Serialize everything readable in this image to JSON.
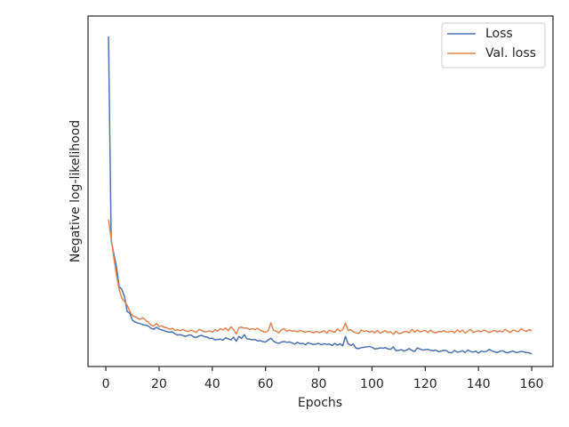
{
  "chart_data": {
    "type": "line",
    "xlabel": "Epochs",
    "ylabel": "Negative log-likelihood",
    "xlim": [
      -6.7,
      168
    ],
    "xticks": [
      0,
      20,
      40,
      60,
      80,
      100,
      120,
      140,
      160
    ],
    "ylim": [
      0,
      100
    ],
    "legend": "upper right",
    "x": [
      1,
      2,
      3,
      4,
      5,
      6,
      7,
      8,
      9,
      10,
      11,
      12,
      13,
      14,
      15,
      16,
      17,
      18,
      19,
      20,
      21,
      22,
      23,
      24,
      25,
      26,
      27,
      28,
      29,
      30,
      31,
      32,
      33,
      34,
      35,
      36,
      37,
      38,
      39,
      40,
      41,
      42,
      43,
      44,
      45,
      46,
      47,
      48,
      49,
      50,
      51,
      52,
      53,
      54,
      55,
      56,
      57,
      58,
      59,
      60,
      61,
      62,
      63,
      64,
      65,
      66,
      67,
      68,
      69,
      70,
      71,
      72,
      73,
      74,
      75,
      76,
      77,
      78,
      79,
      80,
      81,
      82,
      83,
      84,
      85,
      86,
      87,
      88,
      89,
      90,
      91,
      92,
      93,
      94,
      95,
      96,
      97,
      98,
      99,
      100,
      101,
      102,
      103,
      104,
      105,
      106,
      107,
      108,
      109,
      110,
      111,
      112,
      113,
      114,
      115,
      116,
      117,
      118,
      119,
      120,
      121,
      122,
      123,
      124,
      125,
      126,
      127,
      128,
      129,
      130,
      131,
      132,
      133,
      134,
      135,
      136,
      137,
      138,
      139,
      140,
      141,
      142,
      143,
      144,
      145,
      146,
      147,
      148,
      149,
      150,
      151,
      152,
      153,
      154,
      155,
      156,
      157,
      158,
      159,
      160
    ],
    "series": [
      {
        "name": "Loss",
        "color": "#4c72b0",
        "values": [
          94.2,
          36,
          32.2,
          28.4,
          22.8,
          22,
          20,
          15.7,
          15.2,
          13.2,
          12.7,
          12.4,
          12.2,
          11.9,
          11.8,
          11.5,
          10.9,
          10.6,
          11.2,
          10.7,
          10.4,
          10.2,
          9.9,
          9.8,
          9.9,
          9.3,
          9.0,
          9.1,
          8.8,
          8.6,
          8.9,
          9.0,
          8.4,
          8.3,
          8.7,
          8.9,
          8.5,
          8.4,
          8.0,
          8.1,
          7.6,
          7.7,
          7.8,
          7.5,
          8.2,
          7.9,
          7.6,
          8.4,
          7.2,
          8.6,
          8.0,
          9.1,
          7.9,
          7.8,
          7.6,
          7.7,
          7.3,
          7.4,
          7.1,
          7.0,
          7.6,
          8.1,
          7.2,
          6.8,
          6.6,
          7.0,
          7.1,
          6.9,
          7.0,
          6.7,
          6.4,
          6.9,
          6.5,
          6.6,
          6.2,
          6.8,
          6.5,
          6.3,
          6.4,
          6.6,
          6.2,
          6.5,
          6.3,
          6.4,
          6.0,
          6.6,
          6.1,
          6.5,
          5.9,
          8.6,
          6.5,
          6.0,
          6.4,
          5.2,
          5.1,
          5.4,
          5.5,
          5.6,
          5.7,
          5.5,
          5.0,
          5.1,
          5.3,
          5.2,
          5.4,
          5.0,
          4.9,
          5.6,
          4.5,
          4.6,
          4.8,
          4.4,
          4.7,
          5.1,
          4.6,
          4.3,
          5.3,
          5.0,
          4.7,
          4.8,
          4.9,
          4.6,
          4.5,
          4.7,
          4.2,
          4.4,
          4.6,
          4.5,
          4.0,
          3.9,
          4.6,
          4.1,
          4.2,
          4.5,
          4.0,
          4.7,
          4.3,
          4.1,
          4.4,
          3.8,
          4.4,
          4.2,
          4.3,
          4.9,
          4.5,
          4.2,
          4.0,
          4.3,
          4.5,
          4.1,
          3.9,
          4.2,
          4.4,
          4.0,
          4.1,
          4.3,
          4.2,
          4.0,
          3.9,
          3.6
        ]
      },
      {
        "name": "Val. loss",
        "color": "#dd8452",
        "values": [
          42,
          36.5,
          31,
          26,
          22,
          19.5,
          18.5,
          17.5,
          15.7,
          14.5,
          14.2,
          13.7,
          13.5,
          13.9,
          13.2,
          12.6,
          11.8,
          11.5,
          12.3,
          11.4,
          11.6,
          11.2,
          11.0,
          10.6,
          10.9,
          10.3,
          10.5,
          10.2,
          10.6,
          10.2,
          10.0,
          10.4,
          10.1,
          9.7,
          10.6,
          10.3,
          9.9,
          10.0,
          10.2,
          9.8,
          10.5,
          10.1,
          10.8,
          10.4,
          11.0,
          10.2,
          11.3,
          10.5,
          9.3,
          11.1,
          11.2,
          10.9,
          11.0,
          10.6,
          10.8,
          10.5,
          10.9,
          10.3,
          10.0,
          9.8,
          10.2,
          12.4,
          10.3,
          10.1,
          9.6,
          10.5,
          10.8,
          10.0,
          10.4,
          10.1,
          10.2,
          9.9,
          10.3,
          10.0,
          9.8,
          10.1,
          9.9,
          9.6,
          10.0,
          9.7,
          9.9,
          10.2,
          9.5,
          10.4,
          10.0,
          9.8,
          10.7,
          10.1,
          10.5,
          12.4,
          10.3,
          10.5,
          9.9,
          9.6,
          9.4,
          10.4,
          10.0,
          10.2,
          9.8,
          10.1,
          9.6,
          10.3,
          9.5,
          9.9,
          10.2,
          9.7,
          9.9,
          9.2,
          10.1,
          9.4,
          9.5,
          9.9,
          10.0,
          9.6,
          10.6,
          9.8,
          10.4,
          9.9,
          10.1,
          10.3,
          9.7,
          10.4,
          9.8,
          9.6,
          10.0,
          9.9,
          10.2,
          9.8,
          9.9,
          10.1,
          9.6,
          10.5,
          9.8,
          10.4,
          9.5,
          10.1,
          10.6,
          9.7,
          10.0,
          10.2,
          9.9,
          10.4,
          10.1,
          9.7,
          10.0,
          10.3,
          9.8,
          10.2,
          9.9,
          10.6,
          10.1,
          9.7,
          10.4,
          10.2,
          9.9,
          10.8,
          10.3,
          10.0,
          10.5,
          10.2
        ]
      }
    ]
  }
}
